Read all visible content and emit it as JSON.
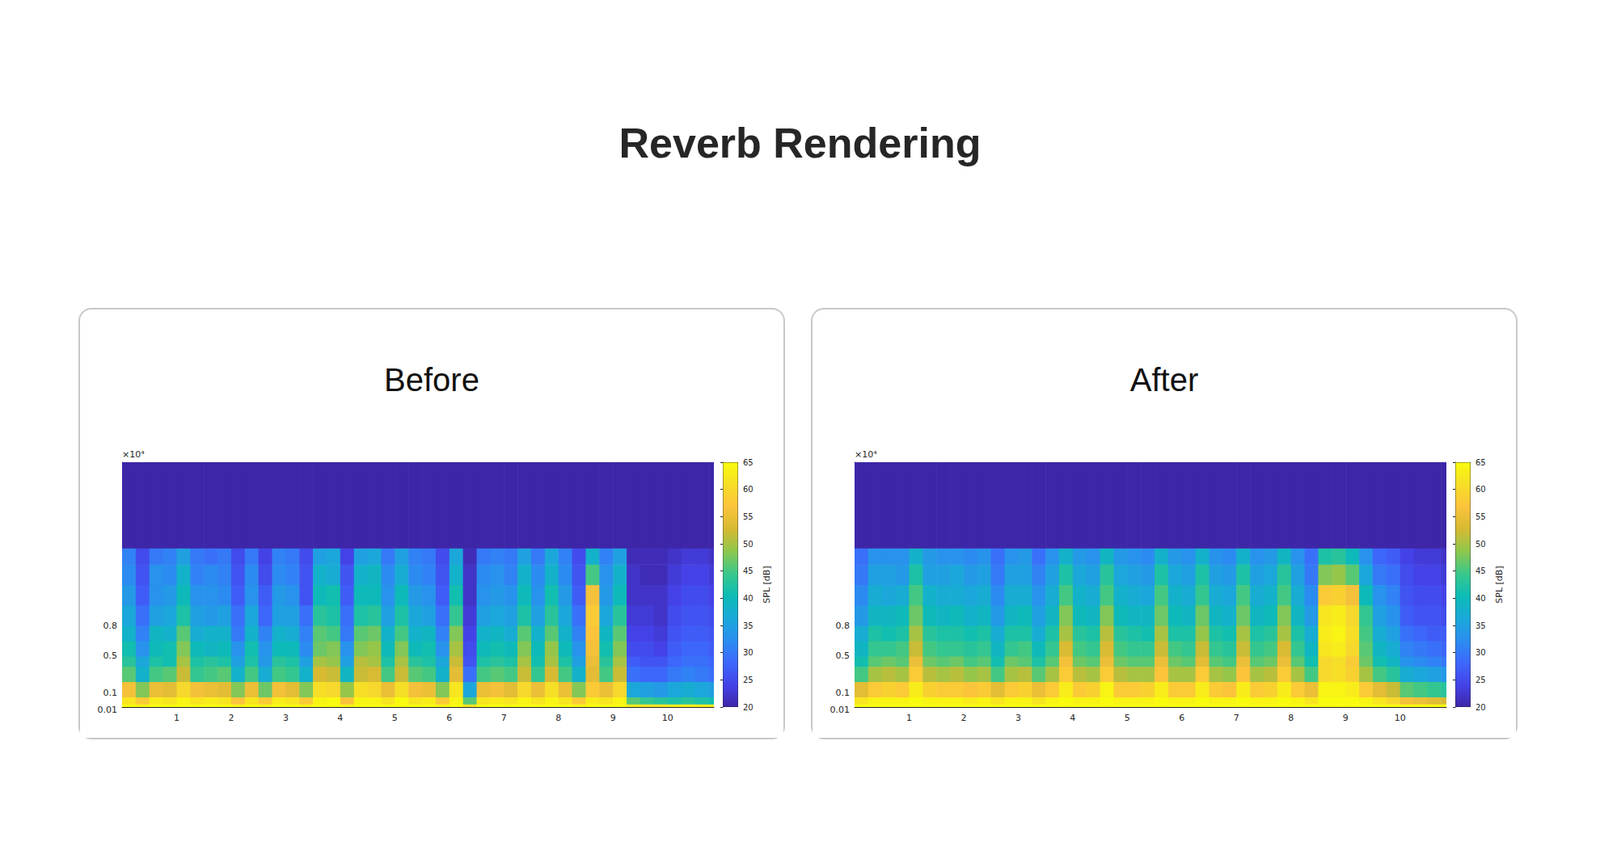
{
  "title": "Reverb Rendering",
  "chart_data": [
    {
      "type": "heatmap",
      "title": "Before",
      "ylabel": "×10⁴",
      "xlim": [
        0,
        10.85
      ],
      "xticks": [
        1,
        2,
        3,
        4,
        5,
        6,
        7,
        8,
        9,
        10
      ],
      "ylim": [
        0,
        2.4
      ],
      "yticks": [
        0.01,
        0.1,
        0.5,
        0.8
      ],
      "colorbar": {
        "label": "SPL [dB]",
        "range": [
          20,
          65
        ],
        "ticks": [
          20,
          25,
          30,
          35,
          40,
          45,
          50,
          55,
          60,
          65
        ]
      },
      "x_edges": [
        0,
        0.25,
        0.5,
        0.75,
        1,
        1.25,
        1.5,
        1.75,
        2,
        2.25,
        2.5,
        2.75,
        3,
        3.25,
        3.5,
        3.75,
        4,
        4.25,
        4.5,
        4.75,
        5,
        5.25,
        5.5,
        5.75,
        6,
        6.25,
        6.5,
        6.75,
        7,
        7.25,
        7.5,
        7.75,
        8,
        8.25,
        8.5,
        8.75,
        9,
        9.25,
        9.5,
        9.75,
        10,
        10.25,
        10.5,
        10.75,
        10.85
      ],
      "y_edges": [
        0,
        0.03,
        0.1,
        0.25,
        0.4,
        0.5,
        0.65,
        0.8,
        1,
        1.2,
        1.4,
        1.56,
        2.4
      ],
      "cells": [
        [
          65,
          62,
          56,
          46,
          43,
          41,
          38,
          36,
          34,
          32,
          31,
          20
        ],
        [
          64,
          58,
          48,
          38,
          36,
          33,
          31,
          29,
          27,
          26,
          25,
          20
        ],
        [
          65,
          63,
          55,
          45,
          42,
          40,
          39,
          35,
          33,
          33,
          30,
          20
        ],
        [
          65,
          62,
          54,
          46,
          41,
          41,
          38,
          36,
          34,
          32,
          31,
          20
        ],
        [
          65,
          64,
          60,
          52,
          50,
          48,
          46,
          42,
          40,
          38,
          35,
          20
        ],
        [
          65,
          62,
          56,
          44,
          42,
          40,
          37,
          35,
          33,
          31,
          30,
          20
        ],
        [
          65,
          63,
          55,
          45,
          43,
          39,
          38,
          34,
          33,
          32,
          29,
          20
        ],
        [
          65,
          62,
          54,
          46,
          42,
          40,
          38,
          35,
          32,
          31,
          30,
          20
        ],
        [
          64,
          57,
          48,
          38,
          35,
          33,
          30,
          29,
          27,
          26,
          25,
          20
        ],
        [
          65,
          62,
          55,
          45,
          42,
          41,
          38,
          36,
          33,
          32,
          30,
          20
        ],
        [
          64,
          58,
          47,
          37,
          34,
          33,
          31,
          28,
          27,
          25,
          24,
          20
        ],
        [
          65,
          63,
          56,
          45,
          43,
          40,
          38,
          35,
          34,
          32,
          31,
          20
        ],
        [
          65,
          62,
          54,
          44,
          42,
          40,
          37,
          35,
          33,
          31,
          30,
          20
        ],
        [
          64,
          58,
          48,
          38,
          35,
          32,
          31,
          29,
          26,
          26,
          25,
          20
        ],
        [
          65,
          64,
          61,
          53,
          50,
          47,
          46,
          43,
          40,
          38,
          35,
          20
        ],
        [
          65,
          65,
          60,
          52,
          49,
          48,
          45,
          42,
          41,
          37,
          36,
          20
        ],
        [
          64,
          57,
          49,
          39,
          35,
          33,
          30,
          29,
          27,
          26,
          24,
          20
        ],
        [
          65,
          64,
          61,
          52,
          51,
          48,
          46,
          42,
          40,
          38,
          35,
          20
        ],
        [
          65,
          64,
          60,
          53,
          50,
          49,
          47,
          43,
          40,
          39,
          36,
          20
        ],
        [
          65,
          62,
          55,
          45,
          42,
          40,
          38,
          35,
          33,
          32,
          30,
          20
        ],
        [
          65,
          65,
          61,
          52,
          50,
          48,
          45,
          42,
          40,
          37,
          35,
          20
        ],
        [
          65,
          62,
          56,
          46,
          43,
          40,
          38,
          36,
          34,
          32,
          31,
          20
        ],
        [
          65,
          63,
          55,
          45,
          42,
          41,
          39,
          35,
          33,
          31,
          30,
          20
        ],
        [
          64,
          58,
          48,
          38,
          36,
          33,
          31,
          29,
          27,
          26,
          25,
          20
        ],
        [
          65,
          64,
          62,
          54,
          52,
          50,
          48,
          44,
          41,
          38,
          36,
          20
        ],
        [
          62,
          46,
          36,
          29,
          26,
          25,
          24,
          23,
          22,
          22,
          21,
          20
        ],
        [
          65,
          62,
          55,
          45,
          42,
          40,
          38,
          35,
          33,
          32,
          30,
          20
        ],
        [
          65,
          63,
          56,
          46,
          43,
          41,
          39,
          36,
          34,
          33,
          31,
          20
        ],
        [
          65,
          62,
          54,
          45,
          42,
          40,
          37,
          35,
          33,
          31,
          30,
          20
        ],
        [
          65,
          64,
          60,
          52,
          50,
          48,
          46,
          42,
          40,
          38,
          35,
          20
        ],
        [
          65,
          62,
          55,
          44,
          41,
          40,
          38,
          35,
          33,
          32,
          30,
          20
        ],
        [
          65,
          64,
          61,
          53,
          50,
          49,
          46,
          43,
          41,
          38,
          36,
          20
        ],
        [
          65,
          62,
          55,
          45,
          42,
          40,
          38,
          36,
          34,
          32,
          31,
          20
        ],
        [
          64,
          58,
          48,
          38,
          35,
          33,
          31,
          29,
          27,
          26,
          25,
          20
        ],
        [
          65,
          63,
          58,
          54,
          55,
          56,
          57,
          58,
          56,
          45,
          38,
          20
        ],
        [
          65,
          62,
          55,
          45,
          43,
          41,
          39,
          36,
          34,
          33,
          31,
          20
        ],
        [
          65,
          64,
          60,
          52,
          50,
          48,
          46,
          43,
          40,
          38,
          35,
          20
        ],
        [
          63,
          46,
          36,
          29,
          27,
          25,
          24,
          23,
          22,
          22,
          21,
          20
        ],
        [
          62,
          44,
          35,
          28,
          26,
          25,
          24,
          23,
          22,
          21,
          21,
          20
        ],
        [
          62,
          43,
          34,
          28,
          26,
          24,
          23,
          22,
          22,
          21,
          21,
          20
        ],
        [
          63,
          42,
          36,
          30,
          28,
          27,
          26,
          25,
          24,
          23,
          22,
          20
        ],
        [
          63,
          43,
          37,
          31,
          29,
          28,
          27,
          26,
          25,
          24,
          23,
          20
        ],
        [
          63,
          42,
          36,
          30,
          29,
          28,
          27,
          26,
          25,
          24,
          23,
          20
        ],
        [
          63,
          41,
          35,
          29,
          28,
          27,
          26,
          25,
          24,
          23,
          22,
          20
        ]
      ]
    },
    {
      "type": "heatmap",
      "title": "After",
      "ylabel": "×10⁴",
      "xlim": [
        0,
        10.85
      ],
      "xticks": [
        1,
        2,
        3,
        4,
        5,
        6,
        7,
        8,
        9,
        10
      ],
      "ylim": [
        0,
        2.4
      ],
      "yticks": [
        0.01,
        0.1,
        0.5,
        0.8
      ],
      "colorbar": {
        "label": "SPL [dB]",
        "range": [
          20,
          65
        ],
        "ticks": [
          20,
          25,
          30,
          35,
          40,
          45,
          50,
          55,
          60,
          65
        ]
      },
      "x_edges": [
        0,
        0.25,
        0.5,
        0.75,
        1,
        1.25,
        1.5,
        1.75,
        2,
        2.25,
        2.5,
        2.75,
        3,
        3.25,
        3.5,
        3.75,
        4,
        4.25,
        4.5,
        4.75,
        5,
        5.25,
        5.5,
        5.75,
        6,
        6.25,
        6.5,
        6.75,
        7,
        7.25,
        7.5,
        7.75,
        8,
        8.25,
        8.5,
        8.75,
        9,
        9.25,
        9.5,
        9.75,
        10,
        10.25,
        10.5,
        10.75,
        10.85
      ],
      "y_edges": [
        0,
        0.03,
        0.1,
        0.25,
        0.4,
        0.5,
        0.65,
        0.8,
        1,
        1.2,
        1.4,
        1.56,
        2.4
      ],
      "cells": [
        [
          65,
          62,
          54,
          45,
          41,
          39,
          37,
          34,
          32,
          30,
          29,
          20
        ],
        [
          65,
          64,
          58,
          50,
          46,
          44,
          42,
          39,
          37,
          35,
          33,
          20
        ],
        [
          65,
          64,
          59,
          51,
          47,
          44,
          41,
          39,
          36,
          35,
          33,
          20
        ],
        [
          65,
          64,
          58,
          50,
          46,
          45,
          42,
          40,
          37,
          34,
          33,
          20
        ],
        [
          65,
          65,
          63,
          58,
          55,
          52,
          50,
          47,
          45,
          42,
          38,
          20
        ],
        [
          65,
          64,
          59,
          51,
          47,
          45,
          43,
          40,
          38,
          35,
          34,
          20
        ],
        [
          65,
          64,
          58,
          50,
          46,
          44,
          42,
          39,
          37,
          35,
          33,
          20
        ],
        [
          65,
          64,
          58,
          51,
          47,
          44,
          42,
          40,
          37,
          36,
          33,
          20
        ],
        [
          65,
          63,
          57,
          49,
          45,
          43,
          41,
          38,
          36,
          34,
          32,
          20
        ],
        [
          65,
          64,
          58,
          50,
          46,
          44,
          42,
          39,
          37,
          35,
          33,
          20
        ],
        [
          65,
          62,
          54,
          45,
          41,
          39,
          37,
          34,
          32,
          30,
          29,
          20
        ],
        [
          65,
          64,
          58,
          50,
          47,
          44,
          42,
          39,
          37,
          35,
          33,
          20
        ],
        [
          65,
          64,
          59,
          51,
          46,
          45,
          42,
          40,
          37,
          35,
          34,
          20
        ],
        [
          65,
          62,
          55,
          46,
          42,
          40,
          37,
          35,
          33,
          31,
          29,
          20
        ],
        [
          65,
          64,
          58,
          50,
          46,
          44,
          42,
          39,
          37,
          35,
          33,
          20
        ],
        [
          65,
          65,
          63,
          58,
          56,
          53,
          50,
          48,
          45,
          42,
          38,
          20
        ],
        [
          65,
          64,
          58,
          51,
          47,
          45,
          43,
          40,
          38,
          36,
          34,
          20
        ],
        [
          65,
          64,
          59,
          50,
          46,
          44,
          42,
          39,
          37,
          35,
          33,
          20
        ],
        [
          65,
          65,
          64,
          58,
          55,
          53,
          51,
          48,
          45,
          43,
          39,
          20
        ],
        [
          65,
          64,
          58,
          51,
          47,
          45,
          43,
          40,
          38,
          36,
          34,
          20
        ],
        [
          65,
          64,
          58,
          50,
          46,
          44,
          42,
          39,
          37,
          35,
          33,
          20
        ],
        [
          65,
          64,
          59,
          50,
          46,
          44,
          41,
          39,
          36,
          34,
          32,
          20
        ],
        [
          65,
          65,
          63,
          57,
          55,
          52,
          50,
          47,
          45,
          42,
          38,
          20
        ],
        [
          65,
          64,
          58,
          50,
          47,
          45,
          42,
          40,
          38,
          36,
          34,
          20
        ],
        [
          65,
          64,
          58,
          50,
          46,
          44,
          42,
          39,
          37,
          35,
          33,
          20
        ],
        [
          65,
          65,
          63,
          58,
          54,
          52,
          49,
          47,
          44,
          42,
          38,
          20
        ],
        [
          65,
          64,
          58,
          50,
          46,
          44,
          42,
          39,
          37,
          35,
          33,
          20
        ],
        [
          65,
          64,
          57,
          49,
          45,
          43,
          41,
          38,
          36,
          34,
          32,
          20
        ],
        [
          65,
          65,
          63,
          57,
          55,
          52,
          50,
          47,
          45,
          42,
          38,
          20
        ],
        [
          65,
          64,
          58,
          50,
          46,
          44,
          42,
          39,
          37,
          35,
          33,
          20
        ],
        [
          65,
          64,
          59,
          51,
          47,
          45,
          43,
          40,
          38,
          36,
          34,
          20
        ],
        [
          65,
          65,
          63,
          58,
          55,
          53,
          50,
          48,
          45,
          43,
          39,
          20
        ],
        [
          65,
          64,
          58,
          50,
          46,
          44,
          42,
          39,
          37,
          35,
          33,
          20
        ],
        [
          65,
          62,
          55,
          45,
          41,
          39,
          37,
          34,
          32,
          30,
          29,
          20
        ],
        [
          65,
          65,
          64,
          60,
          60,
          62,
          63,
          62,
          58,
          48,
          42,
          20
        ],
        [
          65,
          65,
          64,
          61,
          61,
          63,
          64,
          63,
          59,
          49,
          43,
          20
        ],
        [
          65,
          65,
          63,
          59,
          58,
          60,
          61,
          60,
          56,
          46,
          40,
          20
        ],
        [
          65,
          64,
          58,
          50,
          47,
          46,
          45,
          44,
          40,
          36,
          33,
          20
        ],
        [
          65,
          62,
          54,
          45,
          41,
          39,
          37,
          35,
          33,
          30,
          28,
          20
        ],
        [
          65,
          60,
          52,
          43,
          39,
          37,
          35,
          33,
          31,
          29,
          27,
          20
        ],
        [
          65,
          56,
          46,
          37,
          33,
          31,
          29,
          27,
          26,
          25,
          24,
          20
        ],
        [
          65,
          55,
          45,
          36,
          32,
          30,
          28,
          26,
          25,
          24,
          23,
          20
        ],
        [
          65,
          54,
          44,
          35,
          31,
          29,
          27,
          26,
          25,
          24,
          23,
          20
        ],
        [
          65,
          53,
          43,
          34,
          30,
          28,
          27,
          25,
          24,
          23,
          22,
          20
        ]
      ]
    }
  ]
}
